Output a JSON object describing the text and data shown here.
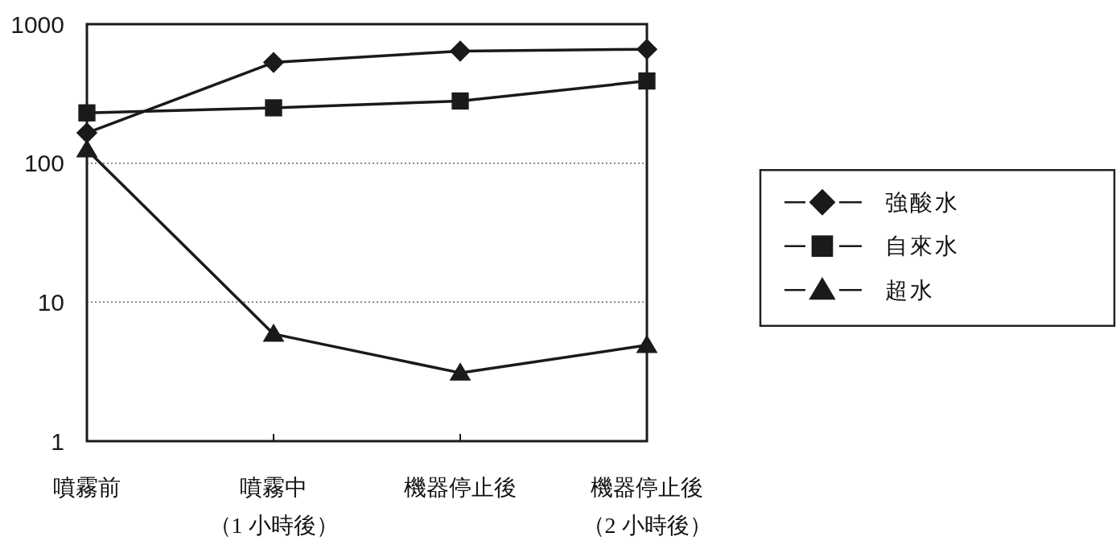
{
  "chart_data": {
    "type": "line",
    "categories": [
      "噴霧前",
      "噴霧中（1 小時後）",
      "機器停止後",
      "機器停止後（2 小時後）"
    ],
    "series": [
      {
        "name": "強酸水",
        "color": "#1a1a1a",
        "marker": "diamond",
        "values": [
          165,
          530,
          640,
          660
        ]
      },
      {
        "name": "自來水",
        "color": "#1a1a1a",
        "marker": "square",
        "values": [
          230,
          250,
          280,
          390
        ]
      },
      {
        "name": "超水",
        "color": "#1a1a1a",
        "marker": "triangle",
        "values": [
          125,
          5.9,
          3.1,
          4.9
        ]
      }
    ],
    "log": true,
    "ylim": [
      1,
      1000
    ],
    "yticks": [
      1,
      10,
      100,
      1000
    ],
    "grid": "y",
    "legend": "right",
    "line_style": "solid"
  }
}
